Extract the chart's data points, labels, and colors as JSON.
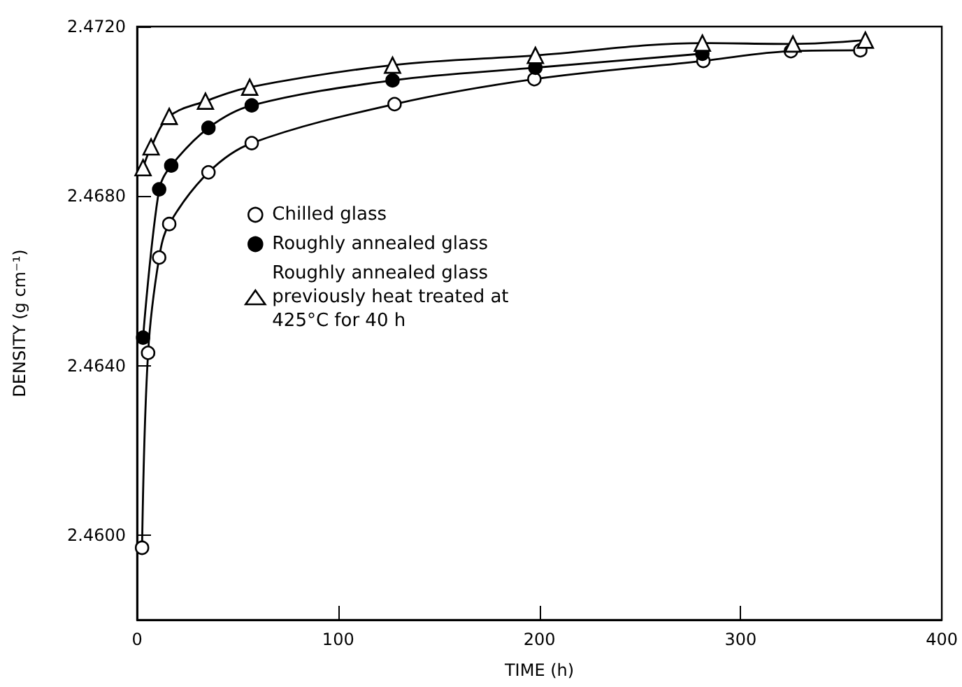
{
  "chart_data": {
    "type": "line",
    "xlabel": "TIME (h)",
    "ylabel": "DENSITY (g cm⁻¹)",
    "xlim": [
      0,
      400
    ],
    "xticks": [
      0,
      100,
      200,
      300,
      400
    ],
    "ylim": [
      2.458,
      2.472
    ],
    "yticks": [
      {
        "value": 2.46,
        "label": "2.4600"
      },
      {
        "value": 2.464,
        "label": "2.4640"
      },
      {
        "value": 2.468,
        "label": "2.4680"
      },
      {
        "value": 2.472,
        "label": "2.4720"
      }
    ],
    "grid": false,
    "legend": "left",
    "line_style": "solid",
    "series": [
      {
        "name": "Chilled glass",
        "color": "#ffffff",
        "marker": "circle",
        "x": [
          2.5,
          5.5,
          11,
          16,
          35.5,
          57,
          128,
          197.5,
          281.5,
          325,
          359.5
        ],
        "values": [
          2.4597,
          2.4643,
          2.46655,
          2.46734,
          2.46856,
          2.46925,
          2.47017,
          2.47076,
          2.47119,
          2.47142,
          2.47144
        ]
      },
      {
        "name": "Roughly annealed glass",
        "color": "#000000",
        "marker": "circle",
        "x": [
          3,
          11,
          17,
          35.5,
          57,
          127,
          198,
          281
        ],
        "values": [
          2.46466,
          2.46816,
          2.46872,
          2.46961,
          2.47014,
          2.47073,
          2.47103,
          2.47136
        ]
      },
      {
        "name": "Roughly annealed glass\npreviously heat treated at\n425°C for 40 h",
        "color": "#ffffff",
        "marker": "triangle",
        "x": [
          3,
          7,
          16,
          34,
          56,
          127,
          198,
          281,
          326,
          362
        ],
        "values": [
          2.46867,
          2.46916,
          2.46988,
          2.47024,
          2.47057,
          2.47109,
          2.47132,
          2.47161,
          2.47159,
          2.47168
        ]
      }
    ]
  }
}
